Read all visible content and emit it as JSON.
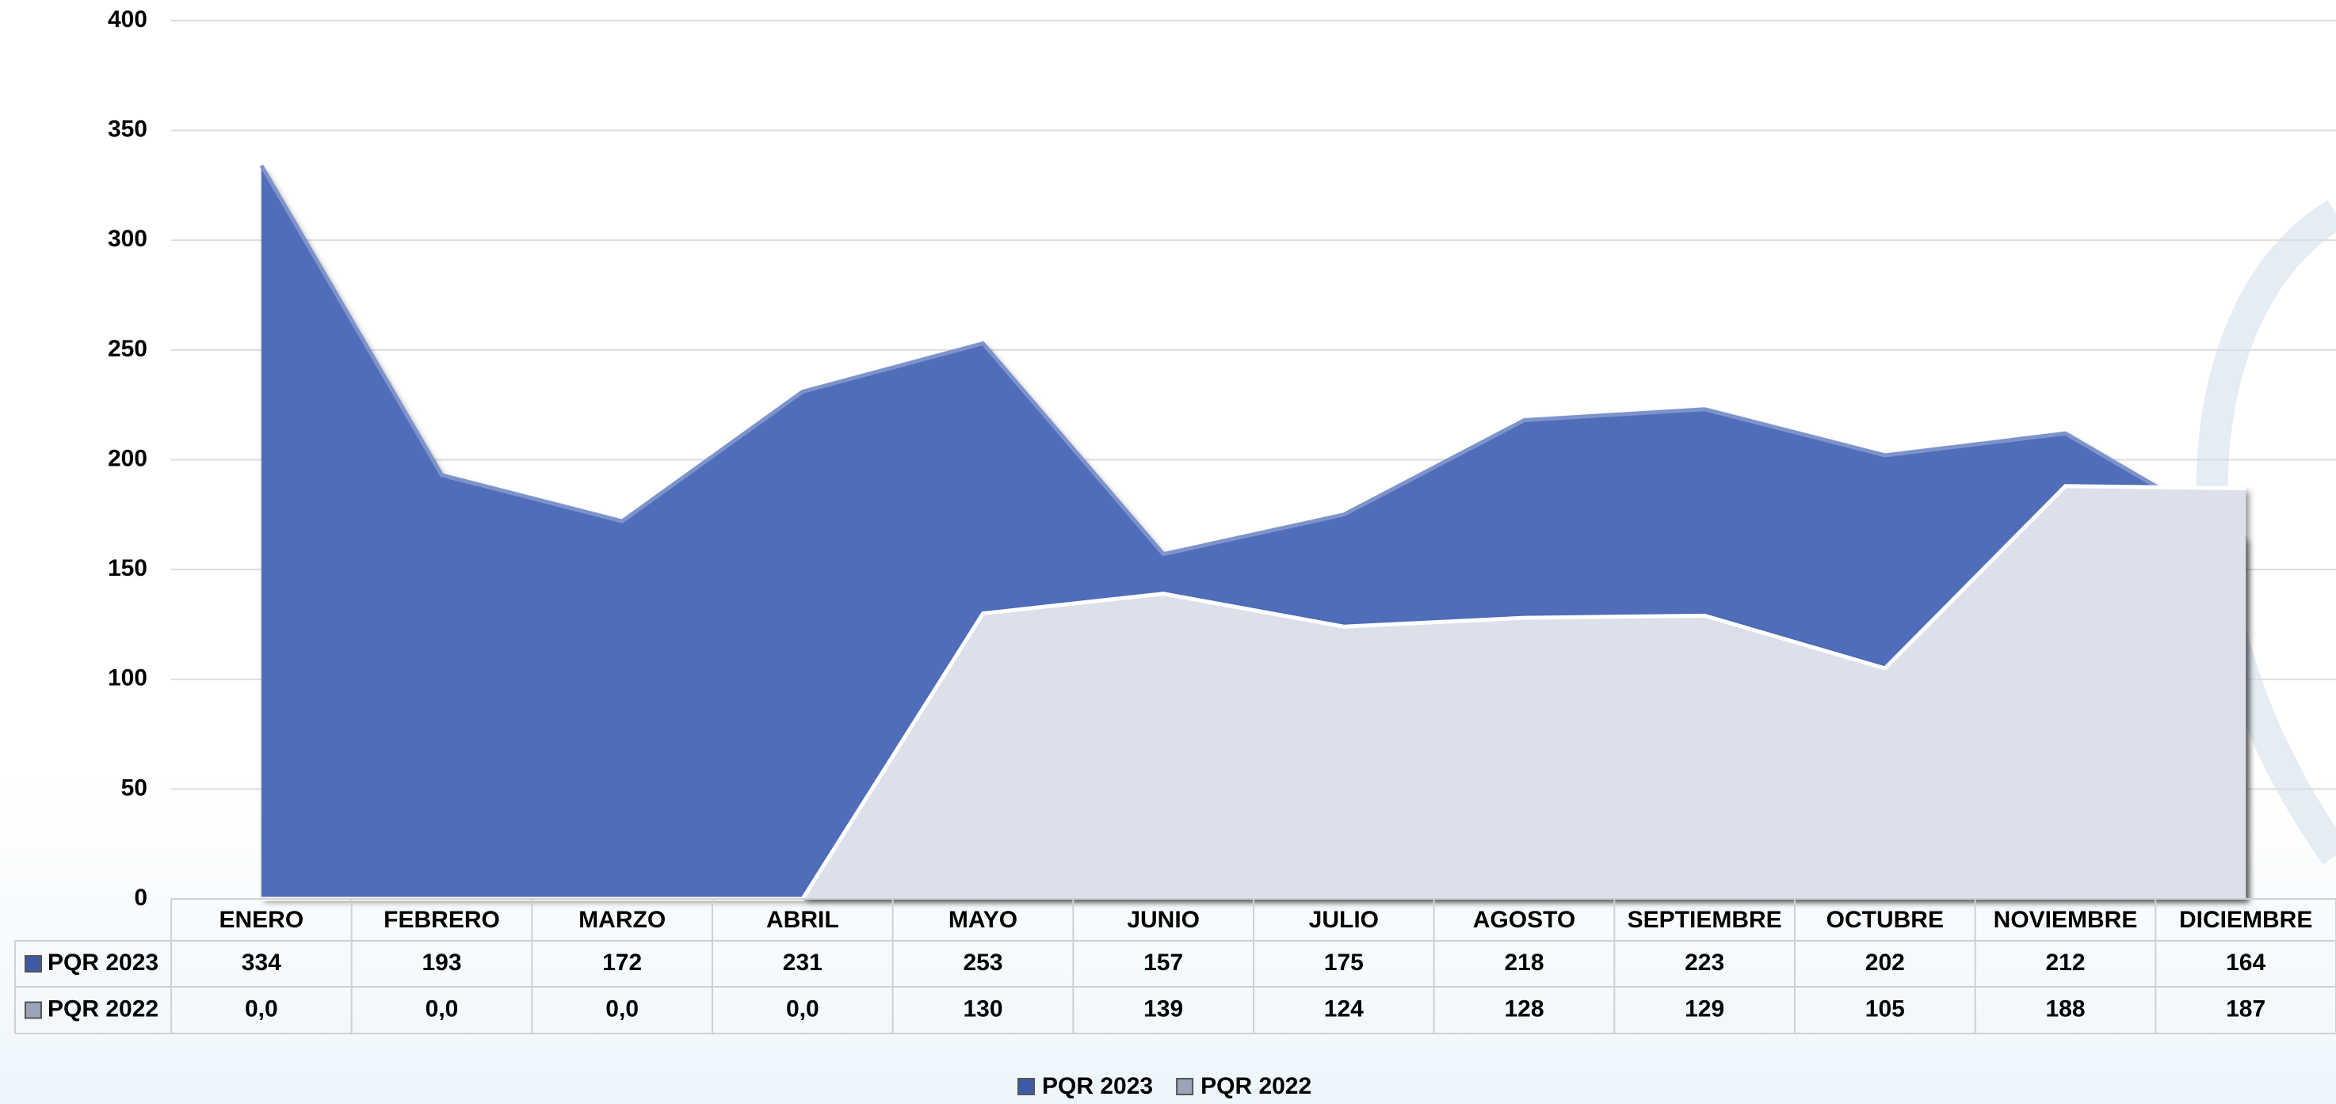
{
  "chart_data": {
    "type": "area",
    "categories": [
      "ENERO",
      "FEBRERO",
      "MARZO",
      "ABRIL",
      "MAYO",
      "JUNIO",
      "JULIO",
      "AGOSTO",
      "SEPTIEMBRE",
      "OCTUBRE",
      "NOVIEMBRE",
      "DICIEMBRE"
    ],
    "series": [
      {
        "name": "PQR 2023",
        "color": "#4f6db8",
        "values": [
          334,
          193,
          172,
          231,
          253,
          157,
          175,
          218,
          223,
          202,
          212,
          164
        ]
      },
      {
        "name": "PQR 2022",
        "color": "#dce0ea",
        "values": [
          0,
          0,
          0,
          0,
          130,
          139,
          124,
          128,
          129,
          105,
          188,
          187
        ],
        "value_labels": [
          "0,0",
          "0,0",
          "0,0",
          "0,0",
          "130",
          "139",
          "124",
          "128",
          "129",
          "105",
          "188",
          "187"
        ]
      }
    ],
    "ylim": [
      0,
      400
    ],
    "yticks": [
      0,
      50,
      100,
      150,
      200,
      250,
      300,
      350,
      400
    ],
    "grid": true,
    "legend": "bottom"
  }
}
